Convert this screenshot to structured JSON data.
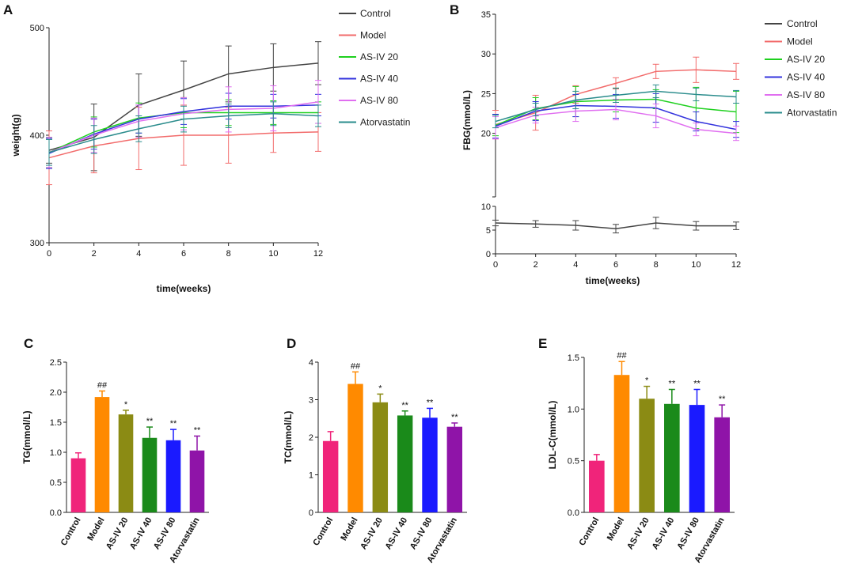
{
  "chart_data": [
    {
      "panel": "A",
      "type": "line",
      "x": [
        0,
        2,
        4,
        6,
        8,
        10,
        12
      ],
      "xlabel": "time(weeks)",
      "ylabel": "weight(g)",
      "xticks": [
        "0",
        "2",
        "4",
        "6",
        "8",
        "10",
        "12"
      ],
      "yticks": [
        "300",
        "400",
        "500"
      ],
      "ylim": [
        300,
        500
      ],
      "series": [
        {
          "name": "Control",
          "color": "#444444",
          "values": [
            386,
            398,
            428,
            442,
            457,
            463,
            467
          ],
          "errors": [
            12,
            31,
            29,
            27,
            26,
            22,
            20
          ]
        },
        {
          "name": "Model",
          "color": "#f26b6b",
          "values": [
            379,
            390,
            397,
            400,
            400,
            402,
            403
          ],
          "errors": [
            25,
            25,
            29,
            28,
            26,
            18,
            18
          ]
        },
        {
          "name": "AS-IV 20",
          "color": "#1ed01e",
          "values": [
            384,
            403,
            416,
            421,
            421,
            421,
            421
          ],
          "errors": [
            14,
            14,
            14,
            14,
            12,
            11,
            10
          ]
        },
        {
          "name": "AS-IV 40",
          "color": "#3333dd",
          "values": [
            383,
            401,
            415,
            422,
            427,
            427,
            428
          ],
          "errors": [
            14,
            14,
            13,
            12,
            12,
            11,
            10
          ]
        },
        {
          "name": "AS-IV 80",
          "color": "#e06ef0",
          "values": [
            384,
            400,
            413,
            420,
            424,
            425,
            431
          ],
          "errors": [
            14,
            16,
            15,
            15,
            21,
            21,
            20
          ]
        },
        {
          "name": "Atorvastatin",
          "color": "#2a8c8c",
          "values": [
            384,
            396,
            406,
            415,
            418,
            420,
            418
          ],
          "errors": [
            12,
            13,
            12,
            12,
            11,
            11,
            10
          ]
        }
      ]
    },
    {
      "panel": "B",
      "type": "line",
      "x": [
        0,
        2,
        4,
        6,
        8,
        10,
        12
      ],
      "xlabel": "time(weeks)",
      "ylabel": "FBG(mmol/L)",
      "xticks": [
        "0",
        "2",
        "4",
        "6",
        "8",
        "10",
        "12"
      ],
      "yticks_top": [
        "20",
        "25",
        "30",
        "35"
      ],
      "yticks_bottom": [
        "0",
        "5",
        "10"
      ],
      "ylim_top": [
        12,
        35
      ],
      "ylim_bottom": [
        0,
        10
      ],
      "series": [
        {
          "name": "Control",
          "color": "#444444",
          "values": [
            6.5,
            6.3,
            6.0,
            5.3,
            6.5,
            5.9,
            5.9
          ],
          "errors": [
            0.6,
            0.7,
            1.0,
            0.9,
            1.2,
            0.9,
            0.8
          ]
        },
        {
          "name": "Model",
          "color": "#f26b6b",
          "values": [
            21.1,
            22.6,
            24.9,
            26.3,
            27.8,
            28.0,
            27.8
          ],
          "errors": [
            1.8,
            2.2,
            1.1,
            0.7,
            0.9,
            1.6,
            1.0
          ]
        },
        {
          "name": "AS-IV 20",
          "color": "#1ed01e",
          "values": [
            21.0,
            23.1,
            24.0,
            24.2,
            24.3,
            23.2,
            22.7
          ],
          "errors": [
            1.3,
            1.4,
            1.9,
            1.5,
            1.2,
            2.6,
            2.6
          ]
        },
        {
          "name": "AS-IV 40",
          "color": "#3333dd",
          "values": [
            20.9,
            22.8,
            23.5,
            23.4,
            23.2,
            21.5,
            20.5
          ],
          "errors": [
            1.5,
            1.2,
            1.4,
            1.5,
            1.8,
            1.2,
            1.0
          ]
        },
        {
          "name": "AS-IV 80",
          "color": "#e06ef0",
          "values": [
            20.7,
            22.3,
            22.8,
            23.0,
            22.2,
            20.5,
            20.0
          ],
          "errors": [
            1.4,
            1.0,
            1.3,
            1.3,
            1.5,
            0.8,
            0.9
          ]
        },
        {
          "name": "Atorvastatin",
          "color": "#2a8c8c",
          "values": [
            21.5,
            23.0,
            24.2,
            24.8,
            25.3,
            24.9,
            24.6
          ],
          "errors": [
            0.8,
            0.8,
            1.1,
            0.9,
            0.8,
            0.8,
            0.8
          ]
        }
      ]
    },
    {
      "panel": "C",
      "type": "bar",
      "ylabel": "TG(mmol/L)",
      "categories": [
        "Control",
        "Model",
        "AS-IV 20",
        "AS-IV 40",
        "AS-IV 80",
        "Atorvastatin"
      ],
      "values": [
        0.9,
        1.92,
        1.63,
        1.24,
        1.2,
        1.03
      ],
      "errors": [
        0.09,
        0.1,
        0.07,
        0.18,
        0.18,
        0.24
      ],
      "annotations": [
        "",
        "##",
        "*",
        "**",
        "**",
        "**"
      ],
      "yticks": [
        "0.0",
        "0.5",
        "1.0",
        "1.5",
        "2.0",
        "2.5"
      ],
      "ylim": [
        0,
        2.5
      ]
    },
    {
      "panel": "D",
      "type": "bar",
      "ylabel": "TC(mmol/L)",
      "categories": [
        "Control",
        "Model",
        "AS-IV 20",
        "AS-IV 40",
        "AS-IV 80",
        "Atorvastatin"
      ],
      "values": [
        1.9,
        3.42,
        2.93,
        2.58,
        2.52,
        2.28
      ],
      "errors": [
        0.25,
        0.32,
        0.22,
        0.12,
        0.25,
        0.1
      ],
      "annotations": [
        "",
        "##",
        "*",
        "**",
        "**",
        "**"
      ],
      "yticks": [
        "0",
        "1",
        "2",
        "3",
        "4"
      ],
      "ylim": [
        0,
        4
      ]
    },
    {
      "panel": "E",
      "type": "bar",
      "ylabel": "LDL-C(mmol/L)",
      "categories": [
        "Control",
        "Model",
        "AS-IV 20",
        "AS-IV 40",
        "AS-IV 80",
        "Atorvastatin"
      ],
      "values": [
        0.5,
        1.33,
        1.1,
        1.05,
        1.04,
        0.92
      ],
      "errors": [
        0.06,
        0.13,
        0.12,
        0.14,
        0.15,
        0.12
      ],
      "annotations": [
        "",
        "##",
        "*",
        "**",
        "**",
        "**"
      ],
      "yticks": [
        "0.0",
        "0.5",
        "1.0",
        "1.5"
      ],
      "ylim": [
        0,
        1.5
      ]
    }
  ],
  "bar_colors": [
    "#f0247a",
    "#ff8a00",
    "#8b8b14",
    "#1a8a1a",
    "#1a1aff",
    "#8f14a8"
  ]
}
